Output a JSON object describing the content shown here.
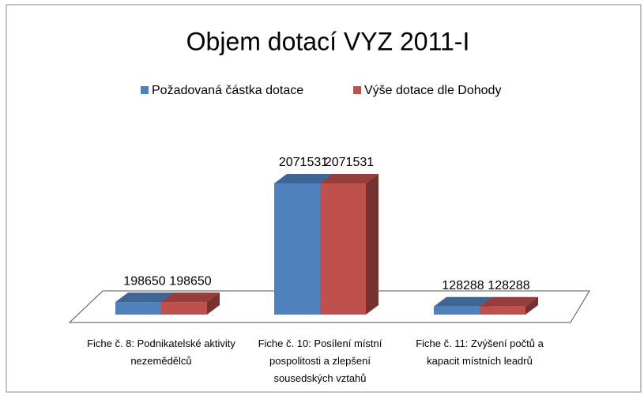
{
  "chart_data": {
    "type": "bar3d",
    "title": "Objem dotací VYZ 2011-I",
    "categories": [
      "Fiche č. 8: Podnikatelské aktivity nezemědělců",
      "Fiche č. 10: Posílení místní pospolitosti a zlepšení sousedských vztahů",
      "Fiche č. 11: Zvýšení počtů a kapacit místních leadrů"
    ],
    "series": [
      {
        "name": "Požadovaná částka dotace",
        "color": "#4f81bd",
        "values": [
          198650,
          2071531,
          128288
        ]
      },
      {
        "name": "Výše dotace dle Dohody",
        "color": "#c0504d",
        "values": [
          198650,
          2071531,
          128288
        ]
      }
    ],
    "legend": "top"
  }
}
